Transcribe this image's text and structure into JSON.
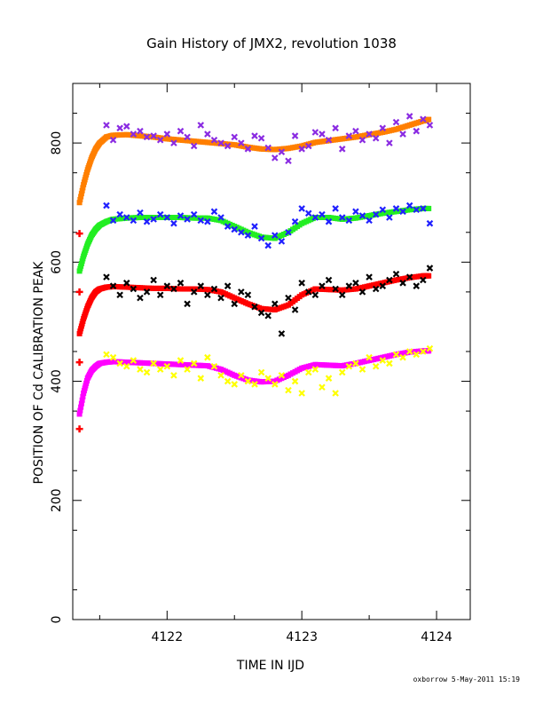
{
  "chart_data": {
    "type": "scatter",
    "title": "Gain History of JMX2, revolution 1038",
    "xlabel": "TIME IN IJD",
    "ylabel": "POSITION OF Cd CALIBRATION PEAK",
    "footer": "oxborrow  5-May-2011 15:19",
    "xlim": [
      4121.3,
      4124.25
    ],
    "ylim": [
      0,
      900
    ],
    "xticks": [
      4122,
      4123,
      4124
    ],
    "yticks": [
      0,
      200,
      400,
      600,
      800
    ],
    "grid": false,
    "series": [
      {
        "kind": "fit",
        "color": "#ff7f00",
        "x": [
          4121.35,
          4121.38,
          4121.41,
          4121.44,
          4121.47,
          4121.5,
          4121.55,
          4121.6,
          4121.7,
          4121.8,
          4121.9,
          4122.0,
          4122.1,
          4122.2,
          4122.3,
          4122.4,
          4122.5,
          4122.6,
          4122.7,
          4122.8,
          4122.9,
          4123.0,
          4123.1,
          4123.2,
          4123.3,
          4123.4,
          4123.5,
          4123.6,
          4123.7,
          4123.8,
          4123.9,
          4123.95
        ],
        "y": [
          700,
          730,
          755,
          775,
          790,
          800,
          810,
          813,
          814,
          812,
          810,
          807,
          805,
          803,
          801,
          799,
          797,
          793,
          790,
          789,
          791,
          795,
          801,
          804,
          807,
          810,
          814,
          818,
          823,
          830,
          837,
          840
        ]
      },
      {
        "kind": "scatter",
        "color": "#8a2be2",
        "x": [
          4121.55,
          4121.6,
          4121.65,
          4121.7,
          4121.75,
          4121.8,
          4121.85,
          4121.9,
          4121.95,
          4122.0,
          4122.05,
          4122.1,
          4122.15,
          4122.2,
          4122.25,
          4122.3,
          4122.35,
          4122.4,
          4122.45,
          4122.5,
          4122.55,
          4122.6,
          4122.65,
          4122.7,
          4122.75,
          4122.8,
          4122.85,
          4122.9,
          4122.95,
          4123.0,
          4123.05,
          4123.1,
          4123.15,
          4123.2,
          4123.25,
          4123.3,
          4123.35,
          4123.4,
          4123.45,
          4123.5,
          4123.55,
          4123.6,
          4123.65,
          4123.7,
          4123.75,
          4123.8,
          4123.85,
          4123.9,
          4123.95
        ],
        "y": [
          830,
          805,
          825,
          828,
          815,
          820,
          810,
          812,
          805,
          815,
          800,
          820,
          810,
          795,
          830,
          815,
          805,
          800,
          795,
          810,
          800,
          790,
          812,
          808,
          792,
          775,
          785,
          770,
          812,
          790,
          795,
          818,
          815,
          805,
          825,
          790,
          812,
          820,
          805,
          815,
          808,
          825,
          800,
          835,
          815,
          845,
          820,
          840,
          830
        ]
      },
      {
        "kind": "fit",
        "color": "#22ee22",
        "x": [
          4121.35,
          4121.38,
          4121.41,
          4121.44,
          4121.47,
          4121.5,
          4121.55,
          4121.6,
          4121.7,
          4121.8,
          4121.9,
          4122.0,
          4122.1,
          4122.2,
          4122.3,
          4122.4,
          4122.5,
          4122.6,
          4122.7,
          4122.8,
          4122.9,
          4123.0,
          4123.1,
          4123.2,
          4123.3,
          4123.4,
          4123.5,
          4123.6,
          4123.7,
          4123.8,
          4123.9,
          4123.95
        ],
        "y": [
          585,
          610,
          630,
          645,
          655,
          662,
          668,
          672,
          674,
          675,
          675,
          675,
          675,
          674,
          674,
          670,
          660,
          650,
          642,
          640,
          650,
          665,
          675,
          675,
          672,
          674,
          678,
          682,
          685,
          688,
          690,
          690
        ]
      },
      {
        "kind": "scatter",
        "color": "#2020ff",
        "x": [
          4121.55,
          4121.6,
          4121.65,
          4121.7,
          4121.75,
          4121.8,
          4121.85,
          4121.9,
          4121.95,
          4122.0,
          4122.05,
          4122.1,
          4122.15,
          4122.2,
          4122.25,
          4122.3,
          4122.35,
          4122.4,
          4122.45,
          4122.5,
          4122.55,
          4122.6,
          4122.65,
          4122.7,
          4122.75,
          4122.8,
          4122.85,
          4122.9,
          4122.95,
          4123.0,
          4123.05,
          4123.1,
          4123.15,
          4123.2,
          4123.25,
          4123.3,
          4123.35,
          4123.4,
          4123.45,
          4123.5,
          4123.55,
          4123.6,
          4123.65,
          4123.7,
          4123.75,
          4123.8,
          4123.85,
          4123.9,
          4123.95
        ],
        "y": [
          695,
          670,
          680,
          675,
          670,
          683,
          668,
          672,
          680,
          675,
          665,
          678,
          672,
          680,
          670,
          668,
          685,
          675,
          660,
          655,
          650,
          645,
          660,
          640,
          628,
          645,
          635,
          650,
          668,
          690,
          682,
          675,
          680,
          668,
          690,
          675,
          670,
          685,
          678,
          670,
          680,
          688,
          675,
          690,
          685,
          695,
          688,
          690,
          665
        ]
      },
      {
        "kind": "fit",
        "color": "#ff0000",
        "x": [
          4121.35,
          4121.38,
          4121.41,
          4121.44,
          4121.47,
          4121.5,
          4121.55,
          4121.6,
          4121.7,
          4121.8,
          4121.9,
          4122.0,
          4122.1,
          4122.2,
          4122.3,
          4122.4,
          4122.5,
          4122.6,
          4122.7,
          4122.8,
          4122.9,
          4123.0,
          4123.1,
          4123.2,
          4123.3,
          4123.4,
          4123.5,
          4123.6,
          4123.7,
          4123.8,
          4123.9,
          4123.95
        ],
        "y": [
          480,
          505,
          525,
          540,
          550,
          555,
          558,
          559,
          558,
          557,
          556,
          556,
          555,
          555,
          554,
          550,
          540,
          530,
          522,
          520,
          528,
          545,
          555,
          554,
          553,
          555,
          560,
          565,
          570,
          574,
          577,
          577
        ]
      },
      {
        "kind": "scatter",
        "color": "#000000",
        "x": [
          4121.55,
          4121.6,
          4121.65,
          4121.7,
          4121.75,
          4121.8,
          4121.85,
          4121.9,
          4121.95,
          4122.0,
          4122.05,
          4122.1,
          4122.15,
          4122.2,
          4122.25,
          4122.3,
          4122.35,
          4122.4,
          4122.45,
          4122.5,
          4122.55,
          4122.6,
          4122.65,
          4122.7,
          4122.75,
          4122.8,
          4122.85,
          4122.9,
          4122.95,
          4123.0,
          4123.05,
          4123.1,
          4123.15,
          4123.2,
          4123.25,
          4123.3,
          4123.35,
          4123.4,
          4123.45,
          4123.5,
          4123.55,
          4123.6,
          4123.65,
          4123.7,
          4123.75,
          4123.8,
          4123.85,
          4123.9,
          4123.95
        ],
        "y": [
          575,
          560,
          545,
          565,
          555,
          540,
          550,
          570,
          545,
          560,
          555,
          565,
          530,
          550,
          560,
          545,
          555,
          540,
          560,
          530,
          550,
          545,
          525,
          515,
          510,
          530,
          480,
          540,
          520,
          565,
          550,
          545,
          560,
          570,
          555,
          545,
          560,
          565,
          550,
          575,
          555,
          560,
          570,
          580,
          565,
          575,
          560,
          570,
          590
        ]
      },
      {
        "kind": "fit",
        "color": "#ff00ff",
        "x": [
          4121.35,
          4121.38,
          4121.41,
          4121.44,
          4121.47,
          4121.5,
          4121.55,
          4121.6,
          4121.7,
          4121.8,
          4121.9,
          4122.0,
          4122.1,
          4122.2,
          4122.3,
          4122.4,
          4122.5,
          4122.6,
          4122.7,
          4122.8,
          4122.9,
          4123.0,
          4123.1,
          4123.2,
          4123.3,
          4123.4,
          4123.5,
          4123.6,
          4123.7,
          4123.8,
          4123.9,
          4123.95
        ],
        "y": [
          345,
          380,
          405,
          418,
          425,
          430,
          432,
          433,
          432,
          431,
          430,
          429,
          428,
          427,
          426,
          420,
          410,
          402,
          399,
          400,
          410,
          422,
          428,
          427,
          426,
          430,
          435,
          440,
          445,
          449,
          451,
          451
        ]
      },
      {
        "kind": "scatter",
        "color": "#ffff00",
        "x": [
          4121.55,
          4121.6,
          4121.65,
          4121.7,
          4121.75,
          4121.8,
          4121.85,
          4121.9,
          4121.95,
          4122.0,
          4122.05,
          4122.1,
          4122.15,
          4122.2,
          4122.25,
          4122.3,
          4122.35,
          4122.4,
          4122.45,
          4122.5,
          4122.55,
          4122.6,
          4122.65,
          4122.7,
          4122.75,
          4122.8,
          4122.85,
          4122.9,
          4122.95,
          4123.0,
          4123.05,
          4123.1,
          4123.15,
          4123.2,
          4123.25,
          4123.3,
          4123.35,
          4123.4,
          4123.45,
          4123.5,
          4123.55,
          4123.6,
          4123.65,
          4123.7,
          4123.75,
          4123.8,
          4123.85,
          4123.9,
          4123.95
        ],
        "y": [
          445,
          440,
          430,
          425,
          435,
          420,
          415,
          430,
          420,
          425,
          410,
          435,
          420,
          430,
          405,
          440,
          425,
          410,
          400,
          395,
          410,
          400,
          395,
          415,
          405,
          395,
          410,
          385,
          400,
          380,
          415,
          420,
          390,
          405,
          380,
          415,
          425,
          430,
          420,
          440,
          425,
          435,
          430,
          445,
          440,
          450,
          445,
          450,
          455
        ]
      },
      {
        "kind": "first",
        "color": "#ff0000",
        "x": [
          4121.35,
          4121.35,
          4121.35,
          4121.35
        ],
        "y": [
          648,
          550,
          432,
          320
        ]
      }
    ]
  }
}
